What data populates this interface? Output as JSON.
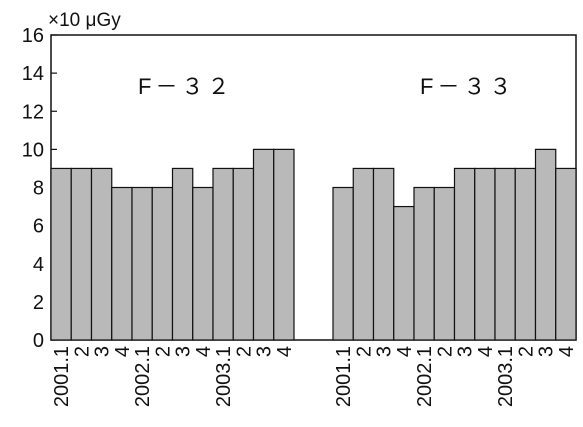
{
  "chart_data": {
    "type": "bar",
    "unit_label": "×10 μGy",
    "ylim": [
      0,
      16
    ],
    "yticks": [
      "0",
      "2",
      "4",
      "6",
      "8",
      "10",
      "12",
      "14",
      "16"
    ],
    "grid": false,
    "bar_color": "#b9b9b9",
    "groups": [
      {
        "name": "F－３２",
        "categories": [
          "2001.1",
          "2",
          "3",
          "4",
          "2002.1",
          "2",
          "3",
          "4",
          "2003.1",
          "2",
          "3",
          "4"
        ],
        "values": [
          9,
          9,
          9,
          8,
          8,
          8,
          9,
          8,
          9,
          9,
          10,
          10
        ]
      },
      {
        "name": "F－３３",
        "categories": [
          "2001.1",
          "2",
          "3",
          "4",
          "2002.1",
          "2",
          "3",
          "4",
          "2003.1",
          "2",
          "3",
          "4"
        ],
        "values": [
          8,
          9,
          9,
          7,
          8,
          8,
          9,
          9,
          9,
          9,
          10,
          9
        ]
      }
    ]
  }
}
